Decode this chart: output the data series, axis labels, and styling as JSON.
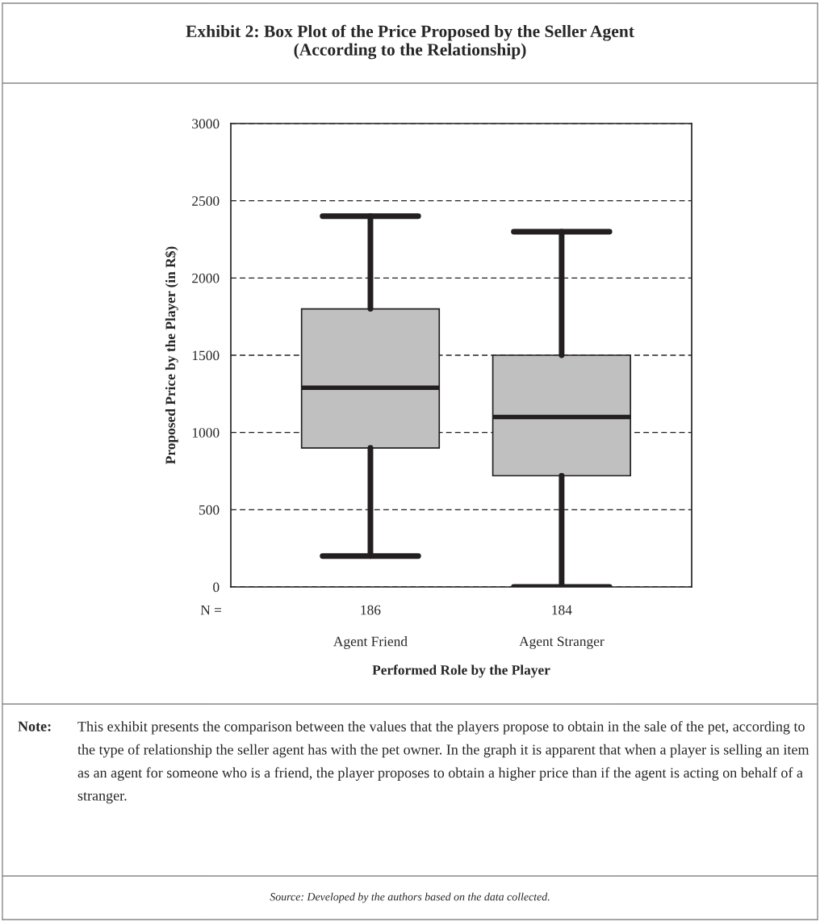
{
  "chart_data": {
    "type": "box",
    "title": "Exhibit 2: Box Plot of the Price Proposed by the Seller Agent\n(According to the Relationship)",
    "xlabel": "Performed Role by the Player",
    "ylabel": "Proposed Price by the Player (in R$)",
    "categories": [
      "Agent Friend",
      "Agent Stranger"
    ],
    "boxes": [
      {
        "low": 200,
        "q1": 900,
        "median": 1290,
        "q3": 1800,
        "high": 2400
      },
      {
        "low": 0,
        "q1": 720,
        "median": 1100,
        "q3": 1500,
        "high": 2300
      }
    ],
    "color": "#c0c0c0",
    "ylim": [
      0,
      3000
    ],
    "yticks": [
      0,
      500,
      1000,
      1500,
      2000,
      2500,
      3000
    ],
    "grid": "y",
    "annotations": [
      "N =",
      "186",
      "184",
      "Note:",
      "This exhibit presents the comparison between the values that the players propose to obtain in the sale of the pet, according to the type of relationship the seller agent has with the pet owner. In the graph it is apparent that when a player is selling an item as an agent for someone who is a friend, the player proposes to obtain a higher price than if the agent is acting on behalf of a stranger.",
      "Source: Developed by the authors based on the data collected."
    ]
  }
}
